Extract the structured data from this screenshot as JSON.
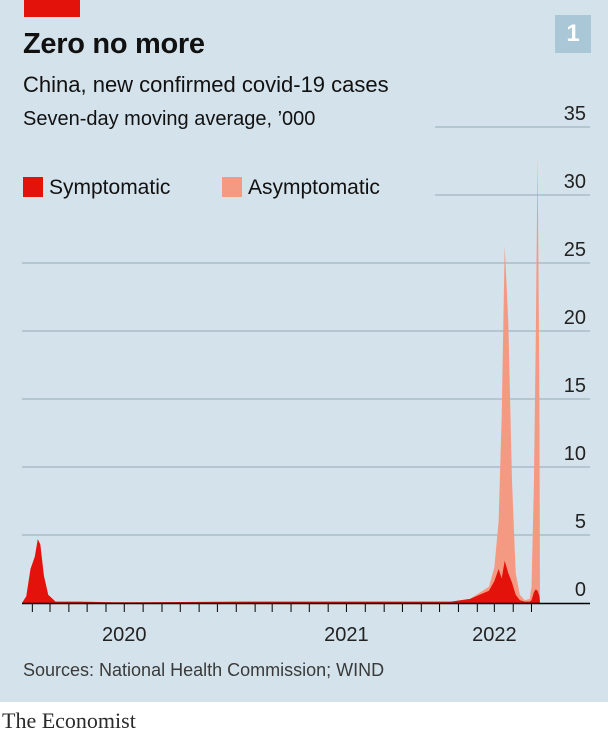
{
  "header": {
    "chart_number": "1",
    "title": "Zero no more",
    "subtitle": "China, new confirmed covid-19 cases",
    "unit": "Seven-day moving average, ’000"
  },
  "legend": {
    "items": [
      {
        "label": "Symptomatic",
        "color": "#e3120b"
      },
      {
        "label": "Asymptomatic",
        "color": "#f59a82"
      }
    ]
  },
  "footer": {
    "source": "Sources: National Health Commission; WIND",
    "brand": "The Economist"
  },
  "colors": {
    "background": "#d4e3eb",
    "gridline": "#93a9b6",
    "accent": "#e3120b",
    "symptomatic": "#e3120b",
    "asymptomatic": "#f59a82"
  },
  "chart_data": {
    "type": "area",
    "stacked": true,
    "ylim": [
      0,
      35
    ],
    "yticks": [
      0,
      5,
      10,
      15,
      20,
      25,
      30,
      35
    ],
    "xlim": [
      "2020-01-15",
      "2022-05-15"
    ],
    "xticks": [
      {
        "label": "2020",
        "date": "2020-07-01"
      },
      {
        "label": "2021",
        "date": "2021-07-01"
      },
      {
        "label": "2022",
        "date": "2022-03-01"
      }
    ],
    "grid": true,
    "legend_position": "top-left",
    "series": [
      {
        "name": "Symptomatic",
        "color": "#e3120b",
        "points": [
          [
            "2020-01-15",
            0
          ],
          [
            "2020-01-22",
            0.5
          ],
          [
            "2020-01-29",
            2.5
          ],
          [
            "2020-02-05",
            3.4
          ],
          [
            "2020-02-10",
            4.7
          ],
          [
            "2020-02-14",
            4.3
          ],
          [
            "2020-02-20",
            2.0
          ],
          [
            "2020-02-27",
            0.6
          ],
          [
            "2020-03-10",
            0.1
          ],
          [
            "2020-04-15",
            0.1
          ],
          [
            "2020-06-15",
            0.05
          ],
          [
            "2020-08-01",
            0.05
          ],
          [
            "2021-01-20",
            0.1
          ],
          [
            "2021-08-05",
            0.1
          ],
          [
            "2021-12-20",
            0.1
          ],
          [
            "2022-01-20",
            0.3
          ],
          [
            "2022-02-20",
            0.9
          ],
          [
            "2022-03-01",
            1.6
          ],
          [
            "2022-03-08",
            2.5
          ],
          [
            "2022-03-13",
            1.8
          ],
          [
            "2022-03-18",
            3.1
          ],
          [
            "2022-03-24",
            2.2
          ],
          [
            "2022-03-30",
            1.5
          ],
          [
            "2022-04-05",
            0.6
          ],
          [
            "2022-04-12",
            0.2
          ],
          [
            "2022-04-20",
            0.1
          ],
          [
            "2022-04-28",
            0.1
          ],
          [
            "2022-05-01",
            0.2
          ],
          [
            "2022-05-05",
            0.8
          ],
          [
            "2022-05-08",
            1.0
          ],
          [
            "2022-05-11",
            0.9
          ],
          [
            "2022-05-14",
            0.5
          ],
          [
            "2022-05-15",
            0
          ]
        ]
      },
      {
        "name": "Asymptomatic",
        "color": "#f59a82",
        "points": [
          [
            "2020-01-15",
            0
          ],
          [
            "2022-01-20",
            0
          ],
          [
            "2022-02-20",
            0.3
          ],
          [
            "2022-03-01",
            1.0
          ],
          [
            "2022-03-08",
            3.5
          ],
          [
            "2022-03-13",
            12.0
          ],
          [
            "2022-03-18",
            23.2
          ],
          [
            "2022-03-24",
            18.5
          ],
          [
            "2022-03-30",
            7.5
          ],
          [
            "2022-04-05",
            1.6
          ],
          [
            "2022-04-12",
            0.4
          ],
          [
            "2022-04-20",
            0.1
          ],
          [
            "2022-04-28",
            0.2
          ],
          [
            "2022-05-01",
            1.0
          ],
          [
            "2022-05-05",
            8.0
          ],
          [
            "2022-05-08",
            18.0
          ],
          [
            "2022-05-11",
            32.0
          ],
          [
            "2022-05-14",
            15.0
          ],
          [
            "2022-05-15",
            0
          ]
        ]
      }
    ]
  }
}
